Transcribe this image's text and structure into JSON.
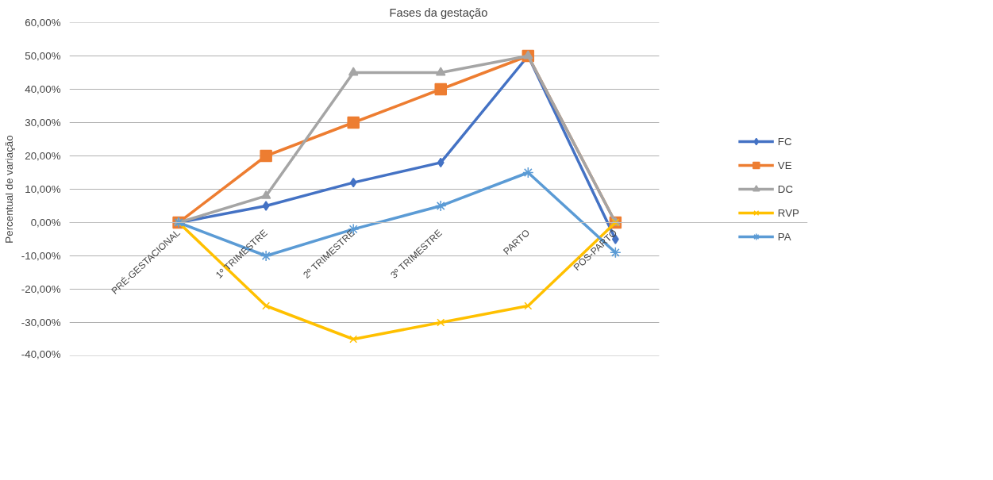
{
  "chart_data": {
    "type": "line",
    "title": "Fases da gestação",
    "ylabel": "Percentual de variação",
    "categories": [
      "PRÉ-GESTACIONAL",
      "1º TRIMESTRE",
      "2º TRIMESTRE",
      "3º TRIMESTRE",
      "PARTO",
      "PÓS-PARTO"
    ],
    "series": [
      {
        "name": "FC",
        "color": "#4472c4",
        "marker": "diamond",
        "values": [
          0,
          5,
          12,
          18,
          50,
          -5
        ]
      },
      {
        "name": "VE",
        "color": "#ed7d31",
        "marker": "square",
        "values": [
          0,
          20,
          30,
          40,
          50,
          0
        ]
      },
      {
        "name": "DC",
        "color": "#a5a5a5",
        "marker": "triangle",
        "values": [
          0,
          8,
          45,
          45,
          50,
          0
        ]
      },
      {
        "name": "RVP",
        "color": "#ffc000",
        "marker": "x",
        "values": [
          0,
          -25,
          -35,
          -30,
          -25,
          0
        ]
      },
      {
        "name": "PA",
        "color": "#5b9bd5",
        "marker": "cross",
        "values": [
          0,
          -10,
          -2,
          5,
          15,
          -9
        ]
      }
    ],
    "ylim": [
      -40,
      60
    ],
    "yticks": [
      {
        "value": -40,
        "label": "-40,00%"
      },
      {
        "value": -30,
        "label": "-30,00%"
      },
      {
        "value": -20,
        "label": "-20,00%"
      },
      {
        "value": -10,
        "label": "-10,00%"
      },
      {
        "value": 0,
        "label": "0,00%"
      },
      {
        "value": 10,
        "label": "10,00%"
      },
      {
        "value": 20,
        "label": "20,00%"
      },
      {
        "value": 30,
        "label": "30,00%"
      },
      {
        "value": 40,
        "label": "40,00%"
      },
      {
        "value": 50,
        "label": "50,00%"
      },
      {
        "value": 60,
        "label": "60,00%"
      }
    ],
    "grid": "y",
    "legend": "right",
    "line_style": "solid"
  }
}
